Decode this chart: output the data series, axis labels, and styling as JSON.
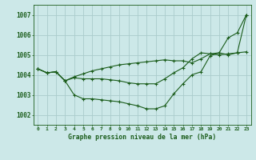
{
  "title": "Graphe pression niveau de la mer (hPa)",
  "x_ticks": [
    0,
    1,
    2,
    3,
    4,
    5,
    6,
    7,
    8,
    9,
    10,
    11,
    12,
    13,
    14,
    15,
    16,
    17,
    18,
    19,
    20,
    21,
    22,
    23
  ],
  "ylim": [
    1001.5,
    1007.5
  ],
  "yticks": [
    1002,
    1003,
    1004,
    1005,
    1006,
    1007
  ],
  "background_color": "#cce8e8",
  "grid_color": "#aacccc",
  "line_color": "#1a5c1a",
  "line1": [
    1004.3,
    1004.1,
    1004.15,
    1003.7,
    1003.85,
    1003.8,
    1003.8,
    1003.8,
    1003.75,
    1003.7,
    1003.6,
    1003.55,
    1003.55,
    1003.55,
    1003.8,
    1004.1,
    1004.35,
    1004.8,
    1005.1,
    1005.05,
    1005.0,
    1005.05,
    1005.1,
    1005.15
  ],
  "line2": [
    1004.3,
    1004.1,
    1004.15,
    1003.7,
    1003.0,
    1002.8,
    1002.8,
    1002.75,
    1002.7,
    1002.65,
    1002.55,
    1002.45,
    1002.3,
    1002.3,
    1002.45,
    1003.05,
    1003.55,
    1004.0,
    1004.15,
    1004.95,
    1005.1,
    1005.85,
    1006.1,
    1007.0
  ],
  "line3": [
    1004.3,
    1004.1,
    1004.15,
    1003.7,
    1003.9,
    1004.05,
    1004.2,
    1004.3,
    1004.4,
    1004.5,
    1004.55,
    1004.6,
    1004.65,
    1004.7,
    1004.75,
    1004.7,
    1004.7,
    1004.6,
    1004.8,
    1005.05,
    1005.1,
    1005.0,
    1005.1,
    1007.0
  ]
}
